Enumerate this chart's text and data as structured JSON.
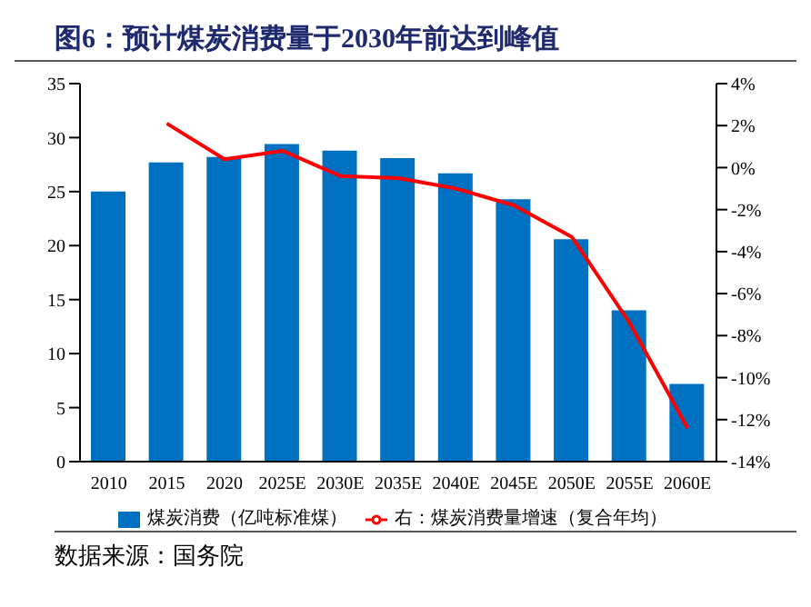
{
  "chart_data": {
    "type": "bar",
    "title": "图6：预计煤炭消费量于2030年前达到峰值",
    "categories": [
      "2010",
      "2015",
      "2020",
      "2025E",
      "2030E",
      "2035E",
      "2040E",
      "2045E",
      "2050E",
      "2055E",
      "2060E"
    ],
    "series": [
      {
        "name": "煤炭消费（亿吨标准煤）",
        "color": "#0070c0",
        "values": [
          25.0,
          27.7,
          28.2,
          29.4,
          28.8,
          28.1,
          26.7,
          24.3,
          20.6,
          14.0,
          7.2
        ]
      },
      {
        "name": "右：煤炭消费量增速（复合年均）",
        "type": "line",
        "axis": "y2",
        "color": "#ff0000",
        "values": [
          null,
          2.1,
          0.4,
          0.8,
          -0.4,
          -0.5,
          -1.0,
          -1.8,
          -3.3,
          -7.4,
          -12.4
        ]
      }
    ],
    "ylim": [
      0,
      35
    ],
    "yticks": [
      0,
      5,
      10,
      15,
      20,
      25,
      30,
      35
    ],
    "y2lim": [
      -14,
      4
    ],
    "y2ticks": [
      {
        "value": -14,
        "label": "-14%"
      },
      {
        "value": -12,
        "label": "-12%"
      },
      {
        "value": -10,
        "label": "-10%"
      },
      {
        "value": -8,
        "label": "-8%"
      },
      {
        "value": -6,
        "label": "-6%"
      },
      {
        "value": -4,
        "label": "-4%"
      },
      {
        "value": -2,
        "label": "-2%"
      },
      {
        "value": 0,
        "label": "0%"
      },
      {
        "value": 2,
        "label": "2%"
      },
      {
        "value": 4,
        "label": "4%"
      }
    ],
    "legend": "bottom",
    "marker": "none",
    "annotations": [
      "数据来源：国务院"
    ]
  }
}
